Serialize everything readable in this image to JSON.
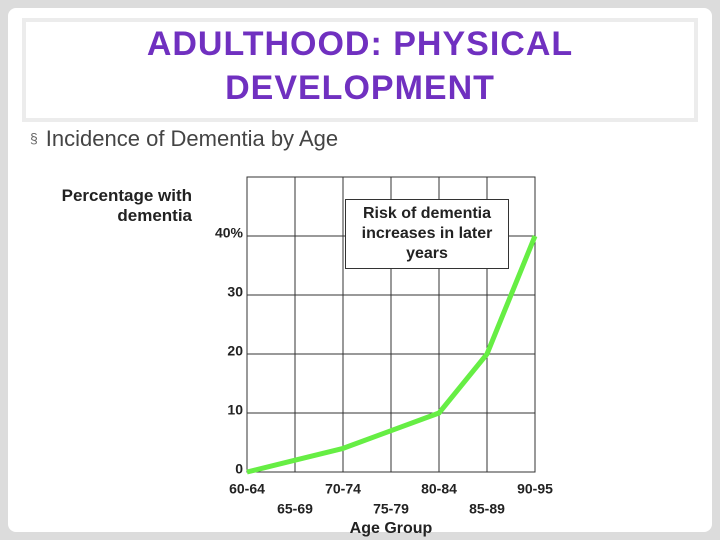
{
  "slide": {
    "title": "ADULTHOOD: PHYSICAL DEVELOPMENT",
    "bullet": "Incidence of Dementia by Age"
  },
  "chart_data": {
    "type": "line",
    "ylabel": "Percentage with dementia",
    "xlabel": "Age Group",
    "annotation": "Risk of dementia increases in later years",
    "categories": [
      "60-64",
      "65-69",
      "70-74",
      "75-79",
      "80-84",
      "85-89",
      "90-95"
    ],
    "series": [
      {
        "color": "#66ee44",
        "values": [
          0,
          2,
          4,
          7,
          10,
          20,
          40
        ]
      }
    ],
    "ylim": [
      0,
      50
    ],
    "yticks": [
      0,
      10,
      20,
      30,
      {
        "value": 40,
        "label": "40%"
      }
    ],
    "grid": true
  }
}
